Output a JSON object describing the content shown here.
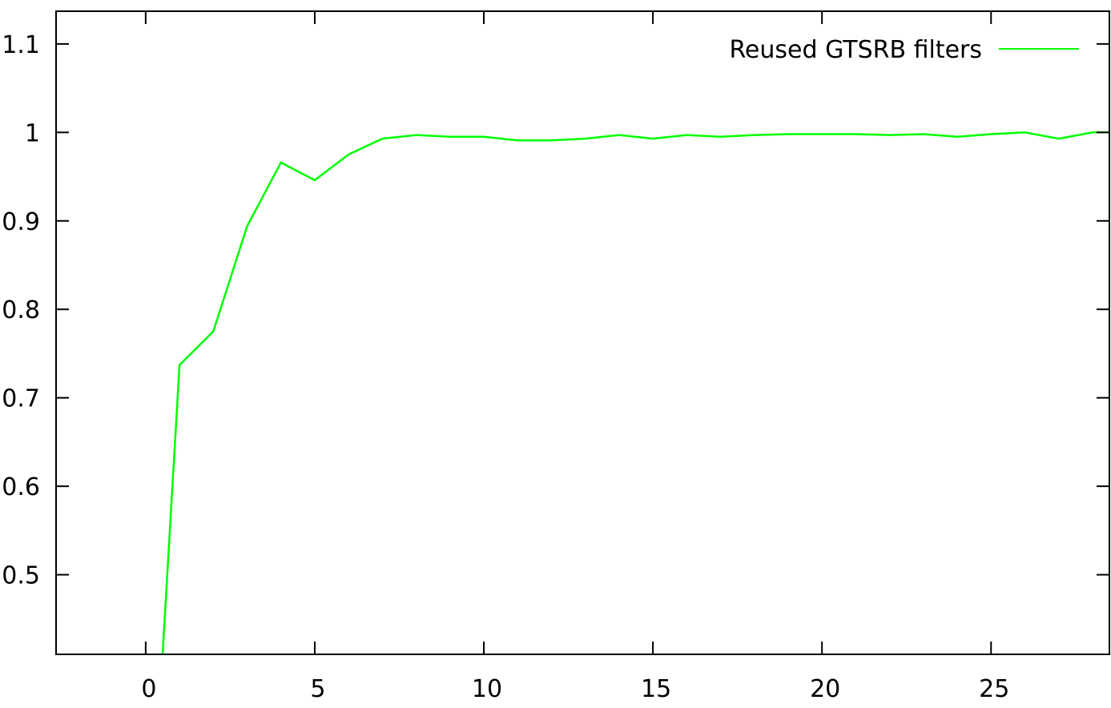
{
  "chart_data": {
    "type": "line",
    "title": "",
    "xlabel": "",
    "ylabel": "",
    "xlim": [
      -2.65,
      28.5
    ],
    "ylim": [
      0.41,
      1.137
    ],
    "x_ticks": [
      0,
      5,
      10,
      15,
      20,
      25
    ],
    "x_tick_labels": [
      "0",
      "5",
      "10",
      "15",
      "20",
      "25"
    ],
    "y_ticks": [
      0.5,
      0.6,
      0.7,
      0.8,
      0.9,
      1.0,
      1.1
    ],
    "y_tick_labels": [
      "0.5",
      "0.6",
      "0.7",
      "0.8",
      "0.9",
      "1",
      "1.1"
    ],
    "grid": false,
    "legend_position": "top-right",
    "series": [
      {
        "name": "Reused GTSRB filters",
        "color": "#00ff00",
        "x": [
          0.5,
          1,
          2,
          3,
          4,
          5,
          6,
          7,
          8,
          9,
          10,
          11,
          12,
          13,
          14,
          15,
          16,
          17,
          18,
          19,
          20,
          21,
          22,
          23,
          24,
          25,
          26,
          27,
          28,
          28.5
        ],
        "y": [
          0.41,
          0.737,
          0.775,
          0.894,
          0.966,
          0.946,
          0.975,
          0.993,
          0.997,
          0.995,
          0.995,
          0.991,
          0.991,
          0.993,
          0.997,
          0.993,
          0.997,
          0.995,
          0.997,
          0.998,
          0.998,
          0.998,
          0.997,
          0.998,
          0.995,
          0.998,
          1.0,
          0.993,
          1.0,
          1.0
        ]
      }
    ]
  }
}
